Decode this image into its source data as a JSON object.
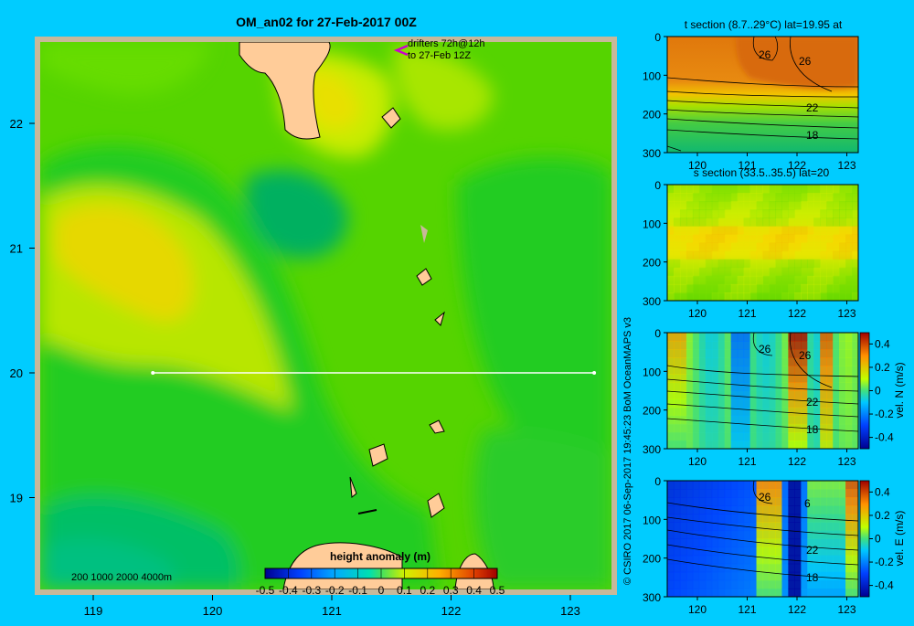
{
  "main_title": "OM_an02 for 27-Feb-2017 00Z",
  "drifters": {
    "line1": "drifters 72h@12h",
    "line2": "to 27-Feb 12Z"
  },
  "depth_legend": "200  1000  2000  4000m",
  "credit": "© CSIRO 2017  06-Sep-2017 19:45:23 BoM OceanMAPS v3",
  "colorbar": {
    "label": "height anomaly (m)",
    "ticks": [
      "-0.5",
      "-0.4",
      "-0.3",
      "-0.2",
      "-0.1",
      "0",
      "0.1",
      "0.2",
      "0.3",
      "0.4",
      "0.5"
    ]
  },
  "map_axes": {
    "x_ticks": [
      "119",
      "120",
      "121",
      "122",
      "123"
    ],
    "y_ticks": [
      "22",
      "21",
      "20",
      "19"
    ]
  },
  "section_line": {
    "lat": 20,
    "lon_start": 119.5,
    "lon_end": 123.2
  },
  "panels": [
    {
      "title": "t section (8.7..29°C) lat=19.95 at",
      "x_ticks": [
        "120",
        "121",
        "122",
        "123"
      ],
      "y_ticks": [
        "0",
        "100",
        "200",
        "300"
      ],
      "contour_labels": [
        "26",
        "26",
        "22",
        "18"
      ],
      "colorbar_label": ""
    },
    {
      "title": "s section (33.5..35.5) lat=20",
      "x_ticks": [
        "120",
        "121",
        "122",
        "123"
      ],
      "y_ticks": [
        "0",
        "100",
        "200",
        "300"
      ],
      "contour_labels": [],
      "colorbar_label": ""
    },
    {
      "title": "",
      "x_ticks": [
        "120",
        "121",
        "122",
        "123"
      ],
      "y_ticks": [
        "0",
        "100",
        "200",
        "300"
      ],
      "contour_labels": [
        "26",
        "26",
        "22",
        "18"
      ],
      "colorbar_label": "vel. N (m/s)",
      "colorbar_ticks": [
        "0.4",
        "0.2",
        "0",
        "-0.2",
        "-0.4"
      ]
    },
    {
      "title": "",
      "x_ticks": [
        "120",
        "121",
        "122",
        "123"
      ],
      "y_ticks": [
        "0",
        "100",
        "200",
        "300"
      ],
      "contour_labels": [
        "26",
        "6",
        "22",
        "18"
      ],
      "colorbar_label": "vel. E (m/s)",
      "colorbar_ticks": [
        "0.4",
        "0.2",
        "0",
        "-0.2",
        "-0.4"
      ]
    }
  ],
  "chart_data": [
    {
      "type": "heatmap",
      "title": "OM_an02 for 27-Feb-2017 00Z",
      "variable": "height anomaly (m)",
      "xlabel": "",
      "ylabel": "",
      "xlim": [
        118.5,
        123.5
      ],
      "ylim": [
        18.3,
        22.7
      ],
      "color_range": [
        -0.5,
        0.5
      ],
      "x_ticks": [
        119,
        120,
        121,
        122,
        123
      ],
      "y_ticks": [
        19,
        20,
        21,
        22
      ]
    },
    {
      "type": "heatmap",
      "title": "t section (8.7..29°C) lat=19.95 at",
      "xlim": [
        119.5,
        123.2
      ],
      "ylim": [
        300,
        0
      ],
      "contour_labels": [
        26,
        26,
        22,
        18
      ]
    },
    {
      "type": "heatmap",
      "title": "s section (33.5..35.5) lat=20",
      "xlim": [
        119.5,
        123.2
      ],
      "ylim": [
        300,
        0
      ]
    },
    {
      "type": "heatmap",
      "title": "",
      "variable": "vel. N (m/s)",
      "xlim": [
        119.5,
        123.2
      ],
      "ylim": [
        300,
        0
      ],
      "color_range": [
        -0.4,
        0.4
      ],
      "contour_labels": [
        26,
        26,
        22,
        18
      ]
    },
    {
      "type": "heatmap",
      "title": "",
      "variable": "vel. E (m/s)",
      "xlim": [
        119.5,
        123.2
      ],
      "ylim": [
        300,
        0
      ],
      "color_range": [
        -0.4,
        0.4
      ],
      "contour_labels": [
        26,
        6,
        22,
        18
      ]
    }
  ]
}
